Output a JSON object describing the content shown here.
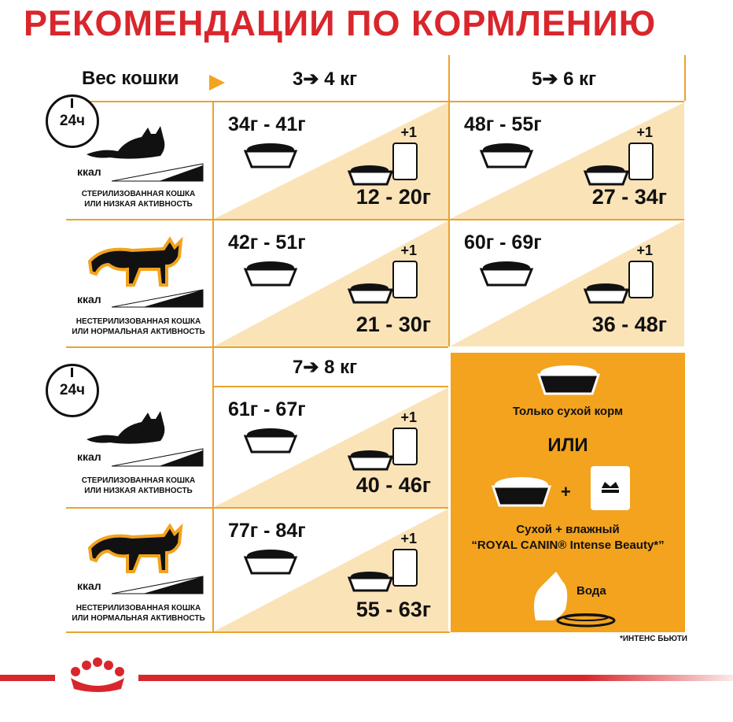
{
  "title": "РЕКОМЕНДАЦИИ ПО КОРМЛЕНИЮ",
  "weight_label": "Вес кошки",
  "weights": {
    "w1": "3➔ 4 кг",
    "w2": "5➔ 6 кг",
    "w3": "7➔ 8 кг"
  },
  "clock_label": "24ч",
  "kcal_label": "ккал",
  "profiles": {
    "sterilized": "СТЕРИЛИЗОВАННАЯ КОШКА\nИЛИ НИЗКАЯ АКТИВНОСТЬ",
    "normal": "НЕСТЕРИЛИЗОВАННАЯ КОШКА\nИЛИ НОРМАЛЬНАЯ АКТИВНОСТЬ"
  },
  "plus_one": "+1",
  "cells": {
    "r1c1": {
      "dry": "34г - 41г",
      "wet": "12 - 20г"
    },
    "r1c2": {
      "dry": "48г - 55г",
      "wet": "27 - 34г"
    },
    "r2c1": {
      "dry": "42г - 51г",
      "wet": "21 - 30г"
    },
    "r2c2": {
      "dry": "60г - 69г",
      "wet": "36 - 48г"
    },
    "r3c1": {
      "dry": "61г - 67г",
      "wet": "40 - 46г"
    },
    "r4c1": {
      "dry": "77г - 84г",
      "wet": "55 - 63г"
    }
  },
  "panel": {
    "dry_only": "Только сухой корм",
    "or": "ИЛИ",
    "plus": "+",
    "combo_line1": "Сухой + влажный",
    "combo_line2": "“ROYAL CANIN® Intense Beauty*”",
    "water": "Вода"
  },
  "footnote": "*ИНТЕНС БЬЮТИ",
  "colors": {
    "title_red": "#d9262c",
    "orange": "#f3a31e",
    "line": "#e9a32e",
    "triangle": "#fbe3b8"
  }
}
